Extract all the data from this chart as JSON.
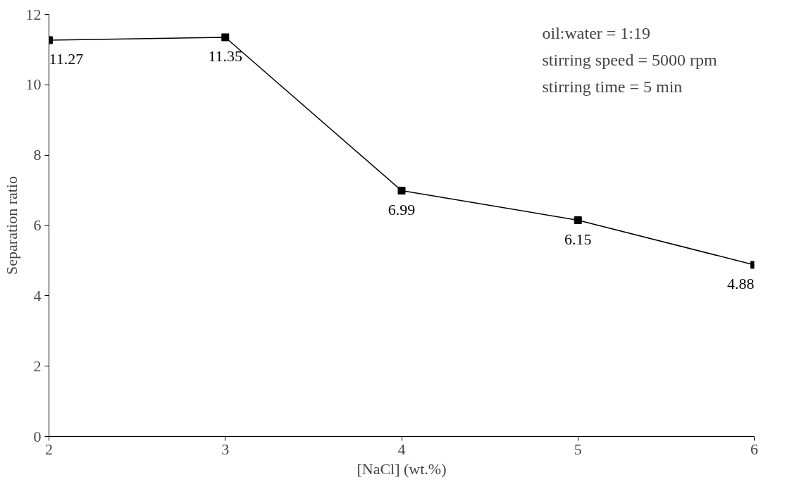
{
  "chart_data": {
    "type": "line",
    "xlabel": "[NaCl] (wt.%)",
    "ylabel": "Separation ratio",
    "x": [
      2,
      3,
      4,
      5,
      6
    ],
    "series": [
      {
        "color": "#000000",
        "values": [
          11.27,
          11.35,
          6.99,
          6.15,
          4.88
        ]
      }
    ],
    "xlim": [
      2,
      6
    ],
    "ylim": [
      0,
      12
    ],
    "xticks": [
      2,
      3,
      4,
      5,
      6
    ],
    "yticks": [
      0,
      2,
      4,
      6,
      8,
      10,
      12
    ],
    "marker": "square",
    "line_style": "solid",
    "data_labels": true,
    "grid": false,
    "annotations": [
      "oil:water = 1:19",
      "stirring speed = 5000 rpm",
      "stirring time = 5 min"
    ]
  }
}
